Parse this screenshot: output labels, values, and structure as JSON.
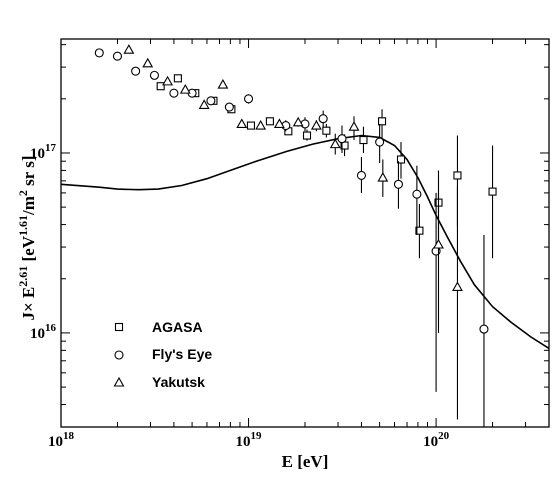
{
  "chart_data": {
    "type": "scatter",
    "title": "",
    "xlabel": {
      "main": "E  [eV]"
    },
    "ylabel": {
      "j": "J",
      "times": "×",
      "e": " E",
      "e_exp": "2.61",
      "open": "  [eV",
      "ev_exp": "1.61",
      "mid": "/m",
      "m_exp": "2",
      "tail": " sr s]"
    },
    "x_scale": "log",
    "y_scale": "log",
    "xlim": [
      1e+18,
      4e+20
    ],
    "ylim": [
      3000000000000000.0,
      4.3e+17
    ],
    "x_ticks": [
      {
        "value": 1e+18,
        "base": "10",
        "exp": "18"
      },
      {
        "value": 1e+19,
        "base": "10",
        "exp": "19"
      },
      {
        "value": 1e+20,
        "base": "10",
        "exp": "20"
      }
    ],
    "y_ticks": [
      {
        "value": 1e+16,
        "base": "10",
        "exp": "16"
      },
      {
        "value": 1e+17,
        "base": "10",
        "exp": "17"
      }
    ],
    "grid": false,
    "legend_position": "bottom-left",
    "series": [
      {
        "name": "AGASA",
        "marker": "square",
        "points": [
          {
            "x": 3.4e+18,
            "y": 2.35e+17,
            "lo": 2.3e+17,
            "hi": 2.4e+17
          },
          {
            "x": 4.2e+18,
            "y": 2.6e+17,
            "lo": 2.55e+17,
            "hi": 2.65e+17
          },
          {
            "x": 5.2e+18,
            "y": 2.15e+17,
            "lo": 2.1e+17,
            "hi": 2.2e+17
          },
          {
            "x": 6.5e+18,
            "y": 1.95e+17,
            "lo": 1.9e+17,
            "hi": 2e+17
          },
          {
            "x": 8.1e+18,
            "y": 1.75e+17,
            "lo": 1.7e+17,
            "hi": 1.8e+17
          },
          {
            "x": 1.03e+19,
            "y": 1.42e+17,
            "lo": 1.38e+17,
            "hi": 1.47e+17
          },
          {
            "x": 1.3e+19,
            "y": 1.5e+17,
            "lo": 1.45e+17,
            "hi": 1.55e+17
          },
          {
            "x": 1.63e+19,
            "y": 1.32e+17,
            "lo": 1.27e+17,
            "hi": 1.37e+17
          },
          {
            "x": 2.05e+19,
            "y": 1.25e+17,
            "lo": 1.17e+17,
            "hi": 1.35e+17
          },
          {
            "x": 2.6e+19,
            "y": 1.33e+17,
            "lo": 1.22e+17,
            "hi": 1.45e+17
          },
          {
            "x": 3.25e+19,
            "y": 1.1e+17,
            "lo": 9.6e+16,
            "hi": 1.27e+17
          },
          {
            "x": 4.1e+19,
            "y": 1.18e+17,
            "lo": 1e+17,
            "hi": 1.4e+17
          },
          {
            "x": 5.15e+19,
            "y": 1.5e+17,
            "lo": 1.15e+17,
            "hi": 1.75e+17
          },
          {
            "x": 6.5e+19,
            "y": 9.2e+16,
            "lo": 7.2e+16,
            "hi": 1.15e+17
          },
          {
            "x": 8.15e+19,
            "y": 3.7e+16,
            "lo": 2.6e+16,
            "hi": 5.2e+16
          },
          {
            "x": 1.03e+20,
            "y": 5.3e+16,
            "lo": 3.3e+16,
            "hi": 8e+16
          },
          {
            "x": 1.3e+20,
            "y": 7.5e+16,
            "lo": 3.9e+16,
            "hi": 1.25e+17
          },
          {
            "x": 2e+20,
            "y": 6.1e+16,
            "lo": 2.6e+16,
            "hi": 1.1e+17
          }
        ]
      },
      {
        "name": "Fly's Eye",
        "marker": "circle",
        "points": [
          {
            "x": 1.6e+18,
            "y": 3.6e+17,
            "lo": 3.55e+17,
            "hi": 3.65e+17
          },
          {
            "x": 2e+18,
            "y": 3.45e+17,
            "lo": 3.4e+17,
            "hi": 3.5e+17
          },
          {
            "x": 2.5e+18,
            "y": 2.85e+17,
            "lo": 2.8e+17,
            "hi": 2.9e+17
          },
          {
            "x": 3.15e+18,
            "y": 2.7e+17,
            "lo": 2.65e+17,
            "hi": 2.75e+17
          },
          {
            "x": 4e+18,
            "y": 2.15e+17,
            "lo": 2.1e+17,
            "hi": 2.2e+17
          },
          {
            "x": 5e+18,
            "y": 2.15e+17,
            "lo": 2.1e+17,
            "hi": 2.2e+17
          },
          {
            "x": 6.3e+18,
            "y": 1.95e+17,
            "lo": 1.88e+17,
            "hi": 2.02e+17
          },
          {
            "x": 7.9e+18,
            "y": 1.8e+17,
            "lo": 1.73e+17,
            "hi": 1.88e+17
          },
          {
            "x": 1e+19,
            "y": 2e+17,
            "lo": 1.88e+17,
            "hi": 2.12e+17
          },
          {
            "x": 1.58e+19,
            "y": 1.42e+17,
            "lo": 1.32e+17,
            "hi": 1.52e+17
          },
          {
            "x": 2e+19,
            "y": 1.45e+17,
            "lo": 1.32e+17,
            "hi": 1.58e+17
          },
          {
            "x": 2.5e+19,
            "y": 1.55e+17,
            "lo": 1.38e+17,
            "hi": 1.72e+17
          },
          {
            "x": 3.15e+19,
            "y": 1.2e+17,
            "lo": 1e+17,
            "hi": 1.42e+17
          },
          {
            "x": 4e+19,
            "y": 7.5e+16,
            "lo": 6e+16,
            "hi": 9.5e+16
          },
          {
            "x": 5e+19,
            "y": 1.15e+17,
            "lo": 8.8e+16,
            "hi": 1.45e+17
          },
          {
            "x": 6.3e+19,
            "y": 6.7e+16,
            "lo": 4.9e+16,
            "hi": 9e+16
          },
          {
            "x": 7.9e+19,
            "y": 5.9e+16,
            "lo": 3.5e+16,
            "hi": 8.5e+16
          },
          {
            "x": 1e+20,
            "y": 2.85e+16,
            "lo": 4700000000000000.0,
            "hi": 6e+16
          },
          {
            "x": 1.8e+20,
            "y": 1.05e+16,
            "lo": 3000000000000000.0,
            "hi": 3.5e+16
          }
        ]
      },
      {
        "name": "Yakutsk",
        "marker": "triangle",
        "points": [
          {
            "x": 2.3e+18,
            "y": 3.75e+17,
            "lo": 3.7e+17,
            "hi": 3.8e+17
          },
          {
            "x": 2.9e+18,
            "y": 3.15e+17,
            "lo": 3.1e+17,
            "hi": 3.2e+17
          },
          {
            "x": 3.7e+18,
            "y": 2.5e+17,
            "lo": 2.45e+17,
            "hi": 2.55e+17
          },
          {
            "x": 4.6e+18,
            "y": 2.25e+17,
            "lo": 2.2e+17,
            "hi": 2.3e+17
          },
          {
            "x": 5.8e+18,
            "y": 1.85e+17,
            "lo": 1.8e+17,
            "hi": 1.9e+17
          },
          {
            "x": 7.3e+18,
            "y": 2.4e+17,
            "lo": 2.35e+17,
            "hi": 2.45e+17
          },
          {
            "x": 9.2e+18,
            "y": 1.45e+17,
            "lo": 1.4e+17,
            "hi": 1.5e+17
          },
          {
            "x": 1.16e+19,
            "y": 1.42e+17,
            "lo": 1.37e+17,
            "hi": 1.47e+17
          },
          {
            "x": 1.46e+19,
            "y": 1.45e+17,
            "lo": 1.4e+17,
            "hi": 1.5e+17
          },
          {
            "x": 1.84e+19,
            "y": 1.48e+17,
            "lo": 1.4e+17,
            "hi": 1.56e+17
          },
          {
            "x": 2.3e+19,
            "y": 1.42e+17,
            "lo": 1.32e+17,
            "hi": 1.52e+17
          },
          {
            "x": 2.9e+19,
            "y": 1.12e+17,
            "lo": 9.8e+16,
            "hi": 1.28e+17
          },
          {
            "x": 3.65e+19,
            "y": 1.4e+17,
            "lo": 1.18e+17,
            "hi": 1.6e+17
          },
          {
            "x": 5.2e+19,
            "y": 7.3e+16,
            "lo": 5.7e+16,
            "hi": 9.2e+16
          },
          {
            "x": 1.03e+20,
            "y": 3.1e+16,
            "lo": 1e+16,
            "hi": 6e+16
          },
          {
            "x": 1.3e+20,
            "y": 1.8e+16,
            "lo": 3300000000000000.0,
            "hi": 6.5e+16
          }
        ]
      }
    ],
    "model_curve": [
      {
        "x": 1e+18,
        "y": 6.7e+16
      },
      {
        "x": 1.6e+18,
        "y": 6.45e+16
      },
      {
        "x": 2e+18,
        "y": 6.3e+16
      },
      {
        "x": 2.6e+18,
        "y": 6.25e+16
      },
      {
        "x": 3.3e+18,
        "y": 6.3e+16
      },
      {
        "x": 4.4e+18,
        "y": 6.6e+16
      },
      {
        "x": 6e+18,
        "y": 7.2e+16
      },
      {
        "x": 8e+18,
        "y": 8e+16
      },
      {
        "x": 1.1e+19,
        "y": 9e+16
      },
      {
        "x": 1.6e+19,
        "y": 1.02e+17
      },
      {
        "x": 2.2e+19,
        "y": 1.12e+17
      },
      {
        "x": 3e+19,
        "y": 1.2e+17
      },
      {
        "x": 4e+19,
        "y": 1.25e+17
      },
      {
        "x": 5e+19,
        "y": 1.22e+17
      },
      {
        "x": 6e+19,
        "y": 1.1e+17
      },
      {
        "x": 7e+19,
        "y": 9.2e+16
      },
      {
        "x": 8e+19,
        "y": 7.3e+16
      },
      {
        "x": 9e+19,
        "y": 5.7e+16
      },
      {
        "x": 1e+20,
        "y": 4.5e+16
      },
      {
        "x": 1.15e+20,
        "y": 3.4e+16
      },
      {
        "x": 1.35e+20,
        "y": 2.5e+16
      },
      {
        "x": 1.6e+20,
        "y": 1.85e+16
      },
      {
        "x": 2e+20,
        "y": 1.4e+16
      },
      {
        "x": 2.5e+20,
        "y": 1.15e+16
      },
      {
        "x": 3.2e+20,
        "y": 9500000000000000.0
      },
      {
        "x": 4e+20,
        "y": 8200000000000000.0
      }
    ]
  }
}
